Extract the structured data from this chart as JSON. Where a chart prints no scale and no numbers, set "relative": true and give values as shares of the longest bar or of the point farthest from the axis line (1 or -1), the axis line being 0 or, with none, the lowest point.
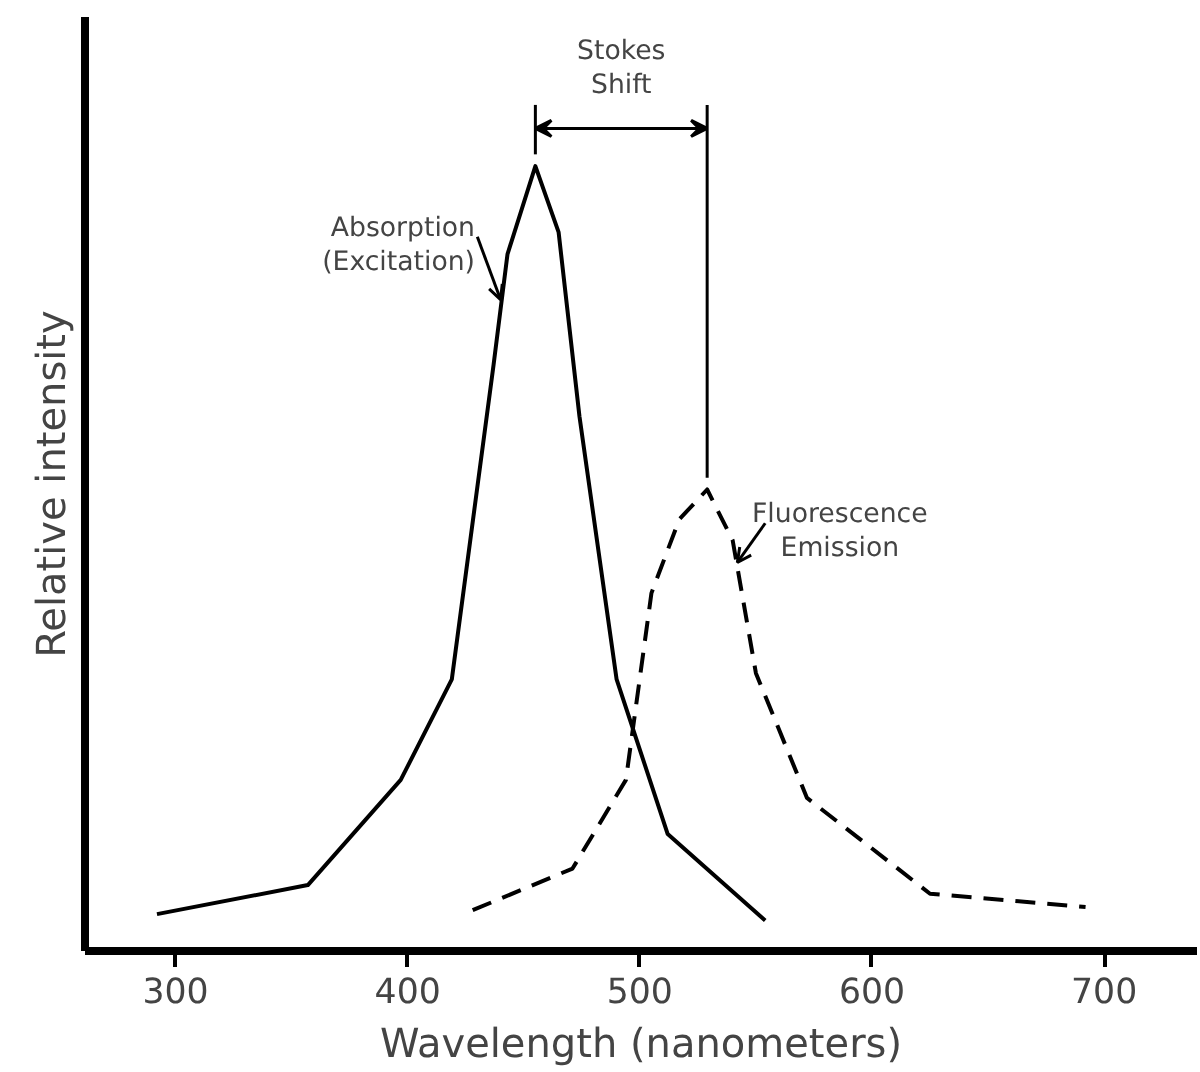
{
  "chart_data": {
    "type": "line",
    "relative": true,
    "xlabel": "Wavelength (nanometers)",
    "ylabel": "Relative intensity",
    "xlim": [
      261,
      740
    ],
    "xticks": [
      300,
      400,
      500,
      600,
      700
    ],
    "grid": false,
    "ref_lines": [
      {
        "axis": "x",
        "value": 529
      }
    ],
    "series": [
      {
        "color": "#000000",
        "line_style": "solid",
        "x": [
          292,
          357,
          397,
          419,
          437,
          443,
          455,
          465,
          474,
          490,
          512,
          554
        ],
        "values": [
          0.047,
          0.084,
          0.218,
          0.346,
          0.747,
          0.888,
          1,
          0.916,
          0.681,
          0.346,
          0.149,
          0.039
        ]
      },
      {
        "color": "#000000",
        "line_style": "dashed",
        "x": [
          428,
          471,
          494,
          505,
          517,
          529,
          540,
          550,
          572,
          625,
          692
        ],
        "values": [
          0.052,
          0.105,
          0.218,
          0.456,
          0.55,
          0.588,
          0.523,
          0.354,
          0.195,
          0.073,
          0.056
        ]
      }
    ],
    "annotations": [
      {
        "text": "Absorption\n(Excitation)",
        "x": 440,
        "y": 0.83
      },
      {
        "text": "Fluorescence\nEmission",
        "x": 542,
        "y": 0.495
      },
      "Stokes\nShift"
    ]
  }
}
